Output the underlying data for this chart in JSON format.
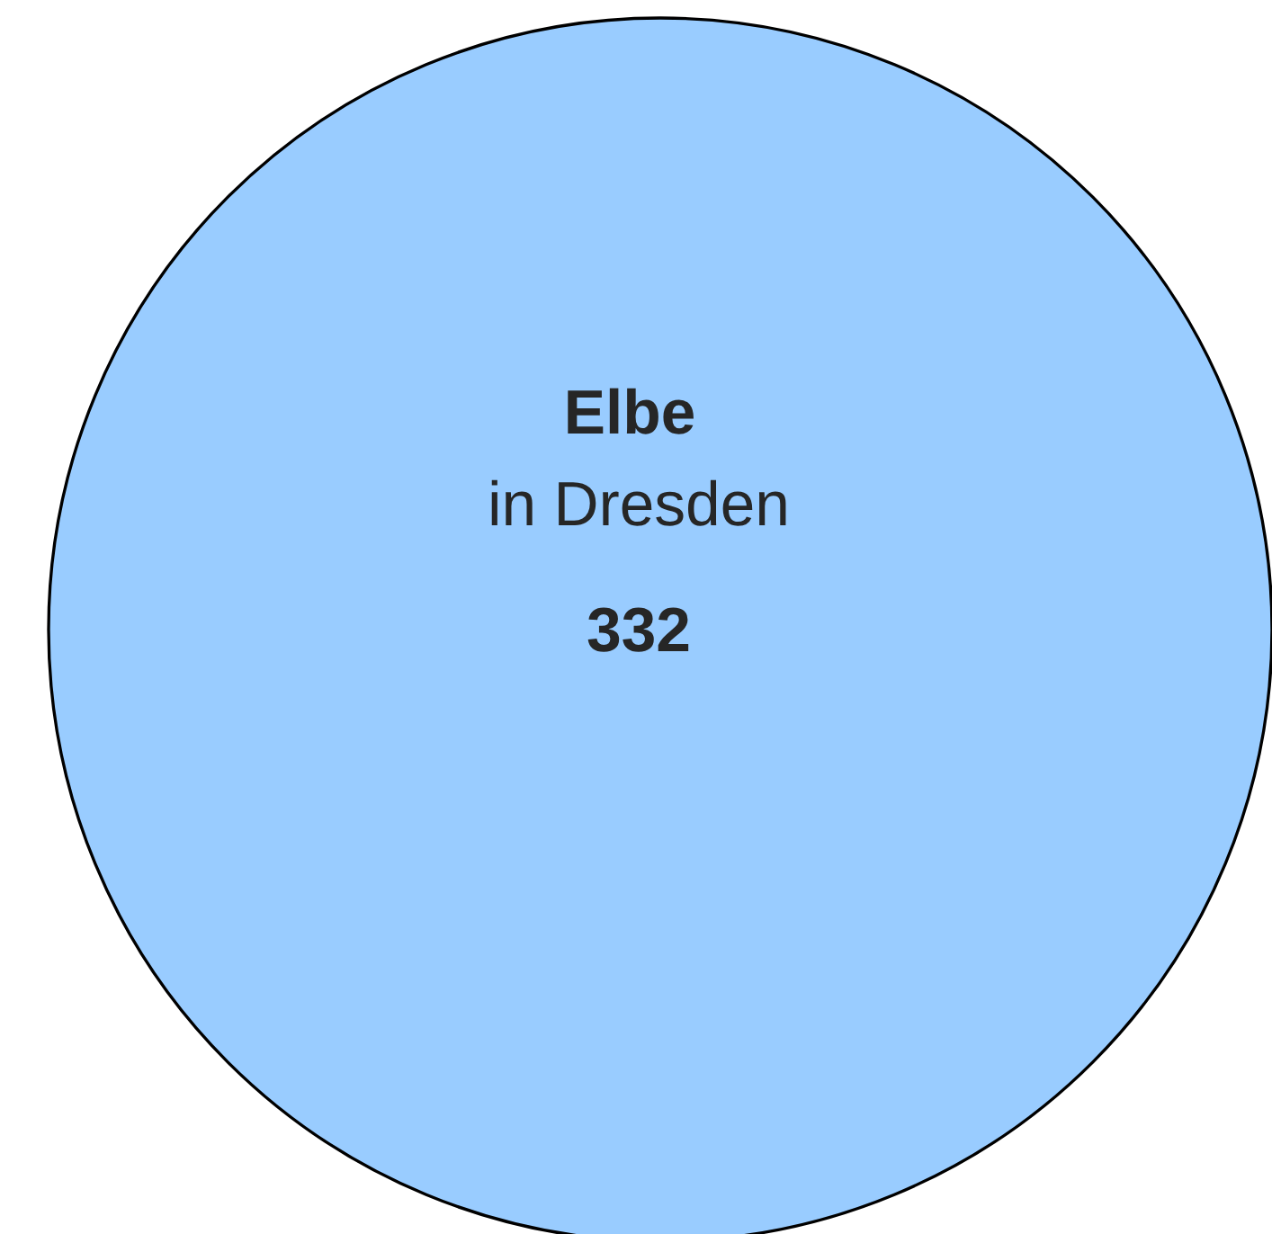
{
  "chart_data": {
    "type": "other",
    "categories": [
      "Elbe"
    ],
    "annotations": [
      "in Dresden"
    ],
    "values": [
      332
    ],
    "colors": [
      "#99ccff"
    ],
    "data_labels": true
  }
}
